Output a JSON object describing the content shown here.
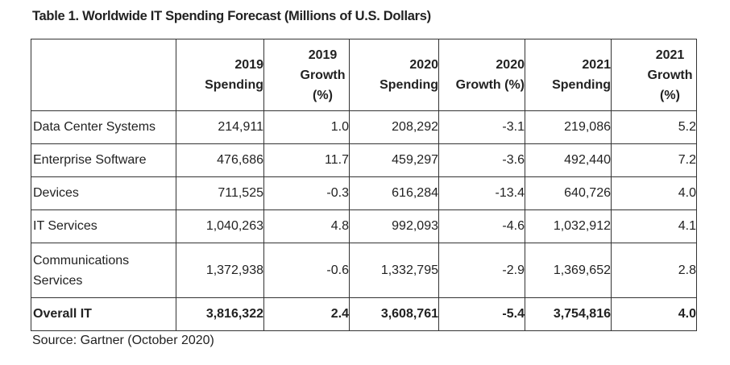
{
  "title": "Table 1. Worldwide IT Spending Forecast (Millions of U.S. Dollars)",
  "headers": [
    [
      "",
      ""
    ],
    [
      "2019",
      "Spending"
    ],
    [
      "2019",
      "Growth",
      "(%)"
    ],
    [
      "2020",
      "Spending"
    ],
    [
      "2020",
      "Growth (%)"
    ],
    [
      "2021",
      "Spending"
    ],
    [
      "2021",
      "Growth",
      "(%)"
    ]
  ],
  "rows": [
    {
      "label": "Data Center Systems",
      "values": [
        "214,911",
        "1.0",
        "208,292",
        "-3.1",
        "219,086",
        "5.2"
      ]
    },
    {
      "label": "Enterprise Software",
      "values": [
        "476,686",
        "11.7",
        "459,297",
        "-3.6",
        "492,440",
        "7.2"
      ]
    },
    {
      "label": "Devices",
      "values": [
        "711,525",
        "-0.3",
        "616,284",
        "-13.4",
        "640,726",
        "4.0"
      ]
    },
    {
      "label": "IT Services",
      "values": [
        "1,040,263",
        "4.8",
        "992,093",
        "-4.6",
        "1,032,912",
        "4.1"
      ]
    },
    {
      "label_lines": [
        "Communications",
        "Services"
      ],
      "values": [
        "1,372,938",
        "-0.6",
        "1,332,795",
        "-2.9",
        "1,369,652",
        "2.8"
      ]
    },
    {
      "label": "Overall IT",
      "values": [
        "3,816,322",
        "2.4",
        "3,608,761",
        "-5.4",
        "3,754,816",
        "4.0"
      ]
    }
  ],
  "source": "Source: Gartner (October 2020)"
}
